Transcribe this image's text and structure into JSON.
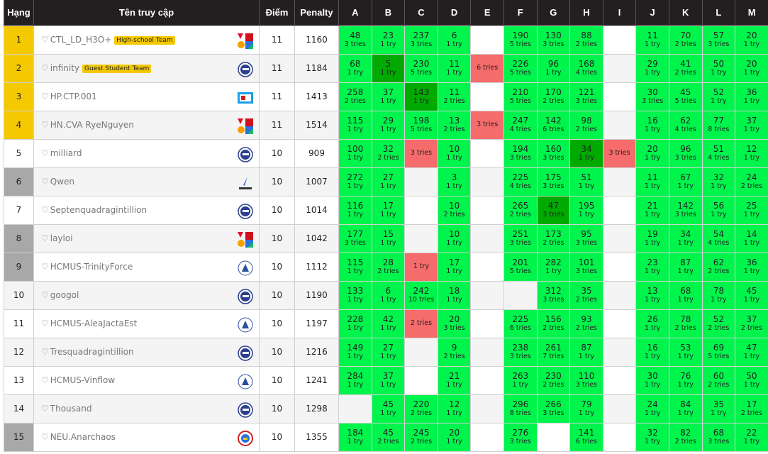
{
  "header": {
    "rank": "Hạng",
    "name": "Tên truy cập",
    "score": "Điểm",
    "penalty": "Penalty",
    "problems": [
      "A",
      "B",
      "C",
      "D",
      "E",
      "F",
      "G",
      "H",
      "I",
      "J",
      "K",
      "L",
      "M"
    ]
  },
  "colors": {
    "accepted": "#00f54c",
    "first_solve": "#00aa00",
    "wrong": "#f66b6b",
    "top_rank": "#f5c900",
    "grey_rank": "#a8a8a8"
  },
  "rows": [
    {
      "rank": "1",
      "name": "CTL_LD_H3O+",
      "badge": "High-school Team",
      "logo": "medal",
      "score": "11",
      "penalty": "1160",
      "rank_style": "gold",
      "cells": [
        [
          "48",
          "3 tries",
          "ac"
        ],
        [
          "23",
          "1 try",
          "ac"
        ],
        [
          "237",
          "3 tries",
          "ac"
        ],
        [
          "6",
          "1 try",
          "ac"
        ],
        null,
        [
          "190",
          "5 tries",
          "ac"
        ],
        [
          "130",
          "3 tries",
          "ac"
        ],
        [
          "88",
          "2 tries",
          "ac"
        ],
        null,
        [
          "11",
          "1 try",
          "ac"
        ],
        [
          "70",
          "2 tries",
          "ac"
        ],
        [
          "57",
          "3 tries",
          "ac"
        ],
        [
          "20",
          "1 try",
          "ac"
        ]
      ]
    },
    {
      "rank": "2",
      "name": "infinity",
      "badge": "Guest Student Team",
      "logo": "globe",
      "score": "11",
      "penalty": "1184",
      "rank_style": "gold",
      "cells": [
        [
          "68",
          "1 try",
          "ac"
        ],
        [
          "5",
          "1 try",
          "first"
        ],
        [
          "230",
          "5 tries",
          "ac"
        ],
        [
          "11",
          "1 try",
          "ac"
        ],
        [
          "",
          "6 tries",
          "wa"
        ],
        [
          "226",
          "5 tries",
          "ac"
        ],
        [
          "96",
          "1 try",
          "ac"
        ],
        [
          "168",
          "4 tries",
          "ac"
        ],
        null,
        [
          "29",
          "1 try",
          "ac"
        ],
        [
          "41",
          "2 tries",
          "ac"
        ],
        [
          "50",
          "1 try",
          "ac"
        ],
        [
          "20",
          "1 try",
          "ac"
        ]
      ]
    },
    {
      "rank": "3",
      "name": "HP.CTP.001",
      "logo": "flag",
      "score": "11",
      "penalty": "1413",
      "rank_style": "gold",
      "cells": [
        [
          "258",
          "2 tries",
          "ac"
        ],
        [
          "37",
          "1 try",
          "ac"
        ],
        [
          "143",
          "1 try",
          "first"
        ],
        [
          "11",
          "2 tries",
          "ac"
        ],
        null,
        [
          "210",
          "5 tries",
          "ac"
        ],
        [
          "170",
          "2 tries",
          "ac"
        ],
        [
          "121",
          "3 tries",
          "ac"
        ],
        null,
        [
          "30",
          "3 tries",
          "ac"
        ],
        [
          "45",
          "5 tries",
          "ac"
        ],
        [
          "52",
          "1 try",
          "ac"
        ],
        [
          "36",
          "1 try",
          "ac"
        ]
      ]
    },
    {
      "rank": "4",
      "name": "HN.CVA RyeNguyen",
      "logo": "medal",
      "score": "11",
      "penalty": "1514",
      "rank_style": "gold",
      "cells": [
        [
          "115",
          "1 try",
          "ac"
        ],
        [
          "29",
          "1 try",
          "ac"
        ],
        [
          "198",
          "5 tries",
          "ac"
        ],
        [
          "13",
          "2 tries",
          "ac"
        ],
        [
          "",
          "3 tries",
          "wa"
        ],
        [
          "247",
          "4 tries",
          "ac"
        ],
        [
          "142",
          "6 tries",
          "ac"
        ],
        [
          "98",
          "2 tries",
          "ac"
        ],
        null,
        [
          "16",
          "1 try",
          "ac"
        ],
        [
          "62",
          "4 tries",
          "ac"
        ],
        [
          "77",
          "8 tries",
          "ac"
        ],
        [
          "37",
          "1 try",
          "ac"
        ]
      ]
    },
    {
      "rank": "5",
      "name": "milliard",
      "logo": "globe",
      "score": "10",
      "penalty": "909",
      "rank_style": "",
      "cells": [
        [
          "100",
          "1 try",
          "ac"
        ],
        [
          "32",
          "2 tries",
          "ac"
        ],
        [
          "",
          "3 tries",
          "wa"
        ],
        [
          "10",
          "1 try",
          "ac"
        ],
        null,
        [
          "194",
          "3 tries",
          "ac"
        ],
        [
          "160",
          "3 tries",
          "ac"
        ],
        [
          "34",
          "1 try",
          "first"
        ],
        [
          "",
          "3 tries",
          "wa"
        ],
        [
          "20",
          "1 try",
          "ac"
        ],
        [
          "96",
          "3 tries",
          "ac"
        ],
        [
          "51",
          "4 tries",
          "ac"
        ],
        [
          "12",
          "1 try",
          "ac"
        ]
      ]
    },
    {
      "rank": "6",
      "name": "Qwen",
      "logo": "pen",
      "score": "10",
      "penalty": "1007",
      "rank_style": "grey",
      "cells": [
        [
          "272",
          "1 try",
          "ac"
        ],
        [
          "27",
          "1 try",
          "ac"
        ],
        null,
        [
          "3",
          "1 try",
          "ac"
        ],
        null,
        [
          "225",
          "4 tries",
          "ac"
        ],
        [
          "175",
          "3 tries",
          "ac"
        ],
        [
          "51",
          "1 try",
          "ac"
        ],
        null,
        [
          "11",
          "1 try",
          "ac"
        ],
        [
          "67",
          "1 try",
          "ac"
        ],
        [
          "32",
          "1 try",
          "ac"
        ],
        [
          "24",
          "2 tries",
          "ac"
        ]
      ]
    },
    {
      "rank": "7",
      "name": "Septenquadragintillion",
      "logo": "globe",
      "score": "10",
      "penalty": "1014",
      "rank_style": "",
      "cells": [
        [
          "116",
          "1 try",
          "ac"
        ],
        [
          "17",
          "1 try",
          "ac"
        ],
        null,
        [
          "10",
          "2 tries",
          "ac"
        ],
        null,
        [
          "265",
          "2 tries",
          "ac"
        ],
        [
          "47",
          "3 tries",
          "first"
        ],
        [
          "195",
          "1 try",
          "ac"
        ],
        null,
        [
          "21",
          "1 try",
          "ac"
        ],
        [
          "142",
          "3 tries",
          "ac"
        ],
        [
          "56",
          "1 try",
          "ac"
        ],
        [
          "25",
          "1 try",
          "ac"
        ]
      ]
    },
    {
      "rank": "8",
      "name": "layloi",
      "logo": "medal",
      "score": "10",
      "penalty": "1042",
      "rank_style": "grey",
      "cells": [
        [
          "177",
          "3 tries",
          "ac"
        ],
        [
          "15",
          "1 try",
          "ac"
        ],
        null,
        [
          "10",
          "1 try",
          "ac"
        ],
        null,
        [
          "251",
          "3 tries",
          "ac"
        ],
        [
          "173",
          "2 tries",
          "ac"
        ],
        [
          "95",
          "3 tries",
          "ac"
        ],
        null,
        [
          "19",
          "1 try",
          "ac"
        ],
        [
          "34",
          "1 try",
          "ac"
        ],
        [
          "54",
          "4 tries",
          "ac"
        ],
        [
          "14",
          "1 try",
          "ac"
        ]
      ]
    },
    {
      "rank": "9",
      "name": "HCMUS-TrinityForce",
      "logo": "hcmus",
      "score": "10",
      "penalty": "1112",
      "rank_style": "grey",
      "cells": [
        [
          "115",
          "1 try",
          "ac"
        ],
        [
          "28",
          "2 tries",
          "ac"
        ],
        [
          "",
          "1 try",
          "wa"
        ],
        [
          "17",
          "1 try",
          "ac"
        ],
        null,
        [
          "201",
          "5 tries",
          "ac"
        ],
        [
          "282",
          "1 try",
          "ac"
        ],
        [
          "101",
          "3 tries",
          "ac"
        ],
        null,
        [
          "23",
          "1 try",
          "ac"
        ],
        [
          "87",
          "1 try",
          "ac"
        ],
        [
          "62",
          "2 tries",
          "ac"
        ],
        [
          "36",
          "1 try",
          "ac"
        ]
      ]
    },
    {
      "rank": "10",
      "name": "googol",
      "logo": "globe",
      "score": "10",
      "penalty": "1190",
      "rank_style": "",
      "cells": [
        [
          "133",
          "1 try",
          "ac"
        ],
        [
          "6",
          "1 try",
          "ac"
        ],
        [
          "242",
          "10 tries",
          "ac"
        ],
        [
          "18",
          "1 try",
          "ac"
        ],
        null,
        null,
        [
          "312",
          "3 tries",
          "ac"
        ],
        [
          "35",
          "2 tries",
          "ac"
        ],
        null,
        [
          "13",
          "1 try",
          "ac"
        ],
        [
          "68",
          "1 try",
          "ac"
        ],
        [
          "78",
          "1 try",
          "ac"
        ],
        [
          "45",
          "1 try",
          "ac"
        ]
      ]
    },
    {
      "rank": "11",
      "name": "HCMUS-AleaJactaEst",
      "logo": "hcmus",
      "score": "10",
      "penalty": "1197",
      "rank_style": "",
      "cells": [
        [
          "228",
          "1 try",
          "ac"
        ],
        [
          "42",
          "1 try",
          "ac"
        ],
        [
          "",
          "2 tries",
          "wa"
        ],
        [
          "20",
          "3 tries",
          "ac"
        ],
        null,
        [
          "225",
          "6 tries",
          "ac"
        ],
        [
          "156",
          "2 tries",
          "ac"
        ],
        [
          "93",
          "2 tries",
          "ac"
        ],
        null,
        [
          "26",
          "1 try",
          "ac"
        ],
        [
          "78",
          "2 tries",
          "ac"
        ],
        [
          "52",
          "2 tries",
          "ac"
        ],
        [
          "37",
          "2 tries",
          "ac"
        ]
      ]
    },
    {
      "rank": "12",
      "name": "Tresquadragintillion",
      "logo": "globe",
      "score": "10",
      "penalty": "1216",
      "rank_style": "",
      "cells": [
        [
          "149",
          "1 try",
          "ac"
        ],
        [
          "27",
          "1 try",
          "ac"
        ],
        null,
        [
          "9",
          "2 tries",
          "ac"
        ],
        null,
        [
          "238",
          "3 tries",
          "ac"
        ],
        [
          "261",
          "7 tries",
          "ac"
        ],
        [
          "87",
          "1 try",
          "ac"
        ],
        null,
        [
          "16",
          "1 try",
          "ac"
        ],
        [
          "53",
          "1 try",
          "ac"
        ],
        [
          "69",
          "5 tries",
          "ac"
        ],
        [
          "47",
          "1 try",
          "ac"
        ]
      ]
    },
    {
      "rank": "13",
      "name": "HCMUS-Vinflow",
      "logo": "hcmus",
      "score": "10",
      "penalty": "1241",
      "rank_style": "",
      "cells": [
        [
          "284",
          "1 try",
          "ac"
        ],
        [
          "37",
          "1 try",
          "ac"
        ],
        null,
        [
          "21",
          "1 try",
          "ac"
        ],
        null,
        [
          "263",
          "1 try",
          "ac"
        ],
        [
          "230",
          "2 tries",
          "ac"
        ],
        [
          "110",
          "3 tries",
          "ac"
        ],
        null,
        [
          "30",
          "1 try",
          "ac"
        ],
        [
          "76",
          "1 try",
          "ac"
        ],
        [
          "60",
          "2 tries",
          "ac"
        ],
        [
          "50",
          "1 try",
          "ac"
        ]
      ]
    },
    {
      "rank": "14",
      "name": "Thousand",
      "logo": "globe",
      "score": "10",
      "penalty": "1298",
      "rank_style": "",
      "cells": [
        null,
        [
          "45",
          "1 try",
          "ac"
        ],
        [
          "220",
          "2 tries",
          "ac"
        ],
        [
          "12",
          "1 try",
          "ac"
        ],
        null,
        [
          "296",
          "8 tries",
          "ac"
        ],
        [
          "266",
          "3 tries",
          "ac"
        ],
        [
          "79",
          "1 try",
          "ac"
        ],
        null,
        [
          "24",
          "1 try",
          "ac"
        ],
        [
          "84",
          "1 try",
          "ac"
        ],
        [
          "35",
          "1 try",
          "ac"
        ],
        [
          "17",
          "2 tries",
          "ac"
        ]
      ]
    },
    {
      "rank": "15",
      "name": "NEU.Anarchaos",
      "logo": "neu",
      "score": "10",
      "penalty": "1355",
      "rank_style": "grey",
      "cells": [
        [
          "184",
          "1 try",
          "ac"
        ],
        [
          "45",
          "2 tries",
          "ac"
        ],
        [
          "245",
          "2 tries",
          "ac"
        ],
        [
          "20",
          "1 try",
          "ac"
        ],
        null,
        [
          "276",
          "3 tries",
          "ac"
        ],
        null,
        [
          "141",
          "6 tries",
          "ac"
        ],
        null,
        [
          "32",
          "1 try",
          "ac"
        ],
        [
          "82",
          "2 tries",
          "ac"
        ],
        [
          "68",
          "3 tries",
          "ac"
        ],
        [
          "22",
          "1 try",
          "ac"
        ]
      ]
    }
  ]
}
